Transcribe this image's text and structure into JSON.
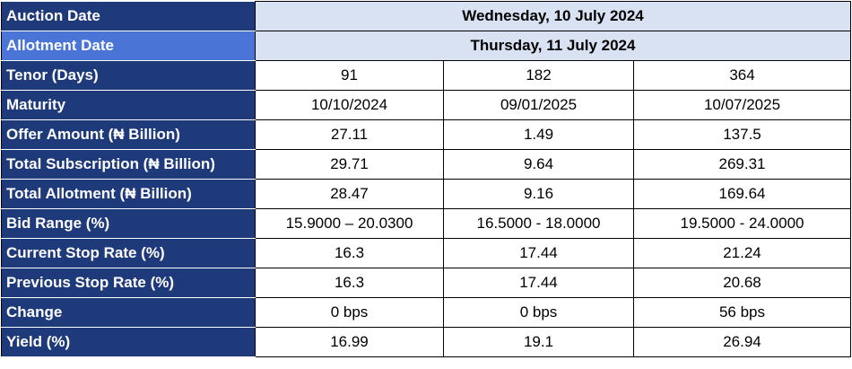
{
  "colors": {
    "label_bg": "#1f3a7a",
    "label_bg_alt": "#4a74d6",
    "header_value_bg": "#d9e2f3",
    "label_text": "#ffffff"
  },
  "header": {
    "auction_label": "Auction Date",
    "auction_value": "Wednesday, 10 July 2024",
    "allotment_label": "Allotment Date",
    "allotment_value": "Thursday, 11 July 2024"
  },
  "rows": [
    {
      "label": "Tenor (Days)",
      "values": [
        "91",
        "182",
        "364"
      ]
    },
    {
      "label": "Maturity",
      "values": [
        "10/10/2024",
        "09/01/2025",
        "10/07/2025"
      ]
    },
    {
      "label": "Offer Amount (₦ Billion)",
      "values": [
        "27.11",
        "1.49",
        "137.5"
      ]
    },
    {
      "label": "Total Subscription (₦ Billion)",
      "values": [
        "29.71",
        "9.64",
        "269.31"
      ]
    },
    {
      "label": "Total Allotment (₦ Billion)",
      "values": [
        "28.47",
        "9.16",
        "169.64"
      ]
    },
    {
      "label": "Bid Range (%)",
      "values": [
        "15.9000 – 20.0300",
        "16.5000 - 18.0000",
        "19.5000 - 24.0000"
      ]
    },
    {
      "label": "Current Stop Rate (%)",
      "values": [
        "16.3",
        "17.44",
        "21.24"
      ]
    },
    {
      "label": "Previous Stop Rate (%)",
      "values": [
        "16.3",
        "17.44",
        "20.68"
      ]
    },
    {
      "label": "Change",
      "values": [
        "0 bps",
        "0 bps",
        "56 bps"
      ]
    },
    {
      "label": "Yield (%)",
      "values": [
        "16.99",
        "19.1",
        "26.94"
      ]
    }
  ]
}
